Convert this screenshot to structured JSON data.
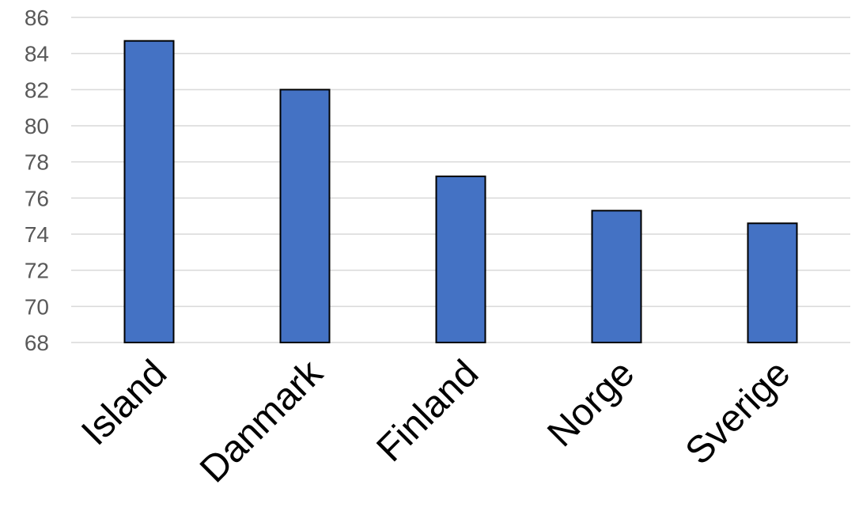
{
  "chart_data": {
    "type": "bar",
    "title": "",
    "xlabel": "",
    "ylabel": "",
    "categories": [
      "Island",
      "Danmark",
      "Finland",
      "Norge",
      "Sverige"
    ],
    "values": [
      84.7,
      82.0,
      77.2,
      75.3,
      74.6
    ],
    "ylim": [
      68,
      86
    ],
    "yticks": [
      68,
      70,
      72,
      74,
      76,
      78,
      80,
      82,
      84,
      86
    ],
    "grid": true,
    "legend": "none",
    "colors": {
      "bar_fill": "#4472c4",
      "bar_stroke": "#000000",
      "gridline": "#d9d9d9",
      "tick_label": "#595959",
      "category_label": "#000000"
    }
  }
}
